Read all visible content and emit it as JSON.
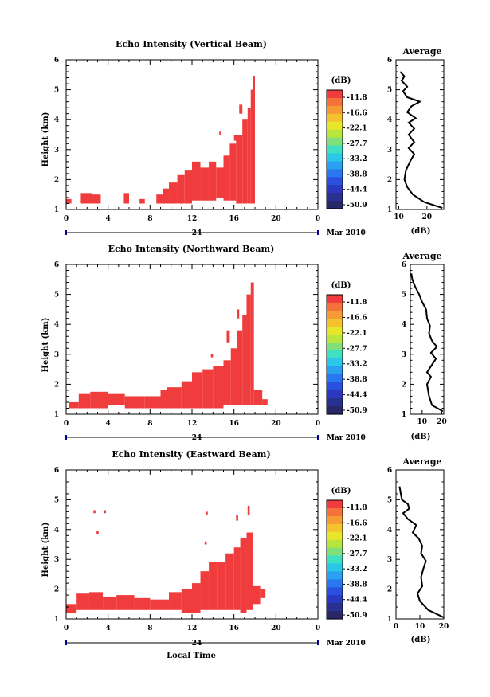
{
  "x_axis_label": "Local Time",
  "time_ticks": [
    "0",
    "4",
    "8",
    "12",
    "16",
    "20",
    "0"
  ],
  "date_day": "24",
  "date_month": "Mar 2010",
  "colorbar": {
    "unit": "(dB)",
    "labels": [
      "-11.8",
      "-16.6",
      "-22.1",
      "-27.7",
      "-33.2",
      "-38.8",
      "-44.4",
      "-50.9"
    ],
    "colors": [
      "#f03c3c",
      "#f5713a",
      "#f59a35",
      "#f5c22f",
      "#e8e62a",
      "#b8e63c",
      "#7fe07a",
      "#3fe0c0",
      "#2ac8e8",
      "#2aa0f0",
      "#2a78f0",
      "#2a50e0",
      "#2a38c0",
      "#283090",
      "#282868"
    ]
  },
  "panels": [
    {
      "title": "Echo Intensity (Vertical Beam)",
      "avg_title": "Average",
      "avg_xticks": [
        "10",
        "20"
      ],
      "avg_xlabel": "(dB)"
    },
    {
      "title": "Echo Intensity (Northward Beam)",
      "avg_title": "Average",
      "avg_xticks": [
        "10",
        "20"
      ],
      "avg_xlabel": "(dB)"
    },
    {
      "title": "Echo Intensity (Eastward Beam)",
      "avg_title": "Average",
      "avg_xticks": [
        "0",
        "10",
        "20"
      ],
      "avg_xlabel": "(dB)"
    }
  ],
  "chart_data": [
    {
      "type": "heatmap",
      "title": "Echo Intensity (Vertical Beam)",
      "xlabel": "",
      "ylabel": "Height (km)",
      "xlim": [
        0,
        24
      ],
      "ylim": [
        1,
        6
      ],
      "color": "#f03c3c",
      "cells_hours_km": [
        [
          0.0,
          0.5,
          1.2,
          1.35
        ],
        [
          1.4,
          2.5,
          1.2,
          1.55
        ],
        [
          2.5,
          3.3,
          1.2,
          1.5
        ],
        [
          5.5,
          6.0,
          1.2,
          1.55
        ],
        [
          7.0,
          7.5,
          1.2,
          1.35
        ],
        [
          8.6,
          9.2,
          1.2,
          1.5
        ],
        [
          9.2,
          9.8,
          1.2,
          1.7
        ],
        [
          9.8,
          10.6,
          1.2,
          1.9
        ],
        [
          10.6,
          11.3,
          1.2,
          2.15
        ],
        [
          11.3,
          12.0,
          1.2,
          2.3
        ],
        [
          12.0,
          12.8,
          1.3,
          2.6
        ],
        [
          12.8,
          13.6,
          1.3,
          2.4
        ],
        [
          13.6,
          14.3,
          1.3,
          2.6
        ],
        [
          14.3,
          15.0,
          1.4,
          2.4
        ],
        [
          15.0,
          15.6,
          1.3,
          2.8
        ],
        [
          15.6,
          16.2,
          1.3,
          3.2
        ],
        [
          16.2,
          16.8,
          1.2,
          3.5
        ],
        [
          16.8,
          17.3,
          1.2,
          4.0
        ],
        [
          17.3,
          17.6,
          1.2,
          4.4
        ],
        [
          17.6,
          17.8,
          1.2,
          5.0
        ],
        [
          17.8,
          18.0,
          1.2,
          5.45
        ],
        [
          16.0,
          16.3,
          3.3,
          3.5
        ],
        [
          16.5,
          16.8,
          4.2,
          4.5
        ],
        [
          14.6,
          14.8,
          3.5,
          3.6
        ]
      ]
    },
    {
      "type": "heatmap",
      "title": "Echo Intensity (Northward Beam)",
      "xlabel": "",
      "ylabel": "Height (km)",
      "xlim": [
        0,
        24
      ],
      "ylim": [
        1,
        6
      ],
      "color": "#f03c3c",
      "cells_hours_km": [
        [
          0.3,
          1.2,
          1.2,
          1.4
        ],
        [
          1.2,
          2.3,
          1.2,
          1.7
        ],
        [
          2.3,
          4.0,
          1.2,
          1.75
        ],
        [
          4.0,
          5.6,
          1.3,
          1.7
        ],
        [
          5.6,
          7.5,
          1.2,
          1.6
        ],
        [
          7.5,
          9.0,
          1.2,
          1.6
        ],
        [
          9.0,
          9.6,
          1.2,
          1.8
        ],
        [
          9.6,
          11.0,
          1.2,
          1.9
        ],
        [
          11.0,
          12.0,
          1.2,
          2.1
        ],
        [
          12.0,
          13.0,
          1.2,
          2.4
        ],
        [
          13.0,
          14.0,
          1.2,
          2.5
        ],
        [
          14.0,
          15.0,
          1.2,
          2.6
        ],
        [
          15.0,
          15.7,
          1.3,
          2.8
        ],
        [
          15.7,
          16.3,
          1.3,
          3.2
        ],
        [
          16.3,
          16.8,
          1.3,
          3.8
        ],
        [
          16.8,
          17.2,
          1.3,
          4.3
        ],
        [
          17.2,
          17.6,
          1.3,
          5.0
        ],
        [
          17.6,
          17.9,
          1.3,
          5.4
        ],
        [
          17.9,
          18.7,
          1.3,
          1.8
        ],
        [
          18.7,
          19.2,
          1.3,
          1.5
        ],
        [
          13.8,
          14.0,
          2.9,
          3.0
        ],
        [
          15.3,
          15.6,
          3.4,
          3.8
        ],
        [
          16.3,
          16.5,
          4.2,
          4.5
        ]
      ]
    },
    {
      "type": "heatmap",
      "title": "Echo Intensity (Eastward Beam)",
      "xlabel": "Local Time",
      "ylabel": "Height (km)",
      "xlim": [
        0,
        24
      ],
      "ylim": [
        1,
        6
      ],
      "color": "#f03c3c",
      "cells_hours_km": [
        [
          0.0,
          1.0,
          1.2,
          1.5
        ],
        [
          1.0,
          2.2,
          1.3,
          1.85
        ],
        [
          2.2,
          3.5,
          1.3,
          1.9
        ],
        [
          3.5,
          4.8,
          1.3,
          1.75
        ],
        [
          4.8,
          6.5,
          1.3,
          1.8
        ],
        [
          6.5,
          8.0,
          1.3,
          1.7
        ],
        [
          8.0,
          9.8,
          1.3,
          1.65
        ],
        [
          9.8,
          11.0,
          1.3,
          1.9
        ],
        [
          11.0,
          12.0,
          1.2,
          2.0
        ],
        [
          12.0,
          12.8,
          1.2,
          2.2
        ],
        [
          12.8,
          13.6,
          1.3,
          2.6
        ],
        [
          13.6,
          14.4,
          1.3,
          2.9
        ],
        [
          14.4,
          15.2,
          1.3,
          2.9
        ],
        [
          15.2,
          16.0,
          1.3,
          3.2
        ],
        [
          16.0,
          16.6,
          1.3,
          3.4
        ],
        [
          16.6,
          17.2,
          1.2,
          3.7
        ],
        [
          17.2,
          17.8,
          1.3,
          3.9
        ],
        [
          17.8,
          18.5,
          1.5,
          2.1
        ],
        [
          18.5,
          19.0,
          1.7,
          2.0
        ],
        [
          2.6,
          2.8,
          4.55,
          4.65
        ],
        [
          3.6,
          3.8,
          4.55,
          4.65
        ],
        [
          2.9,
          3.1,
          3.85,
          3.95
        ],
        [
          13.3,
          13.5,
          4.5,
          4.6
        ],
        [
          13.2,
          13.4,
          3.5,
          3.6
        ],
        [
          16.2,
          16.4,
          4.3,
          4.5
        ],
        [
          17.3,
          17.5,
          4.5,
          4.8
        ]
      ]
    }
  ],
  "averages": [
    {
      "xlim": [
        9,
        26
      ],
      "profile_db_km": [
        [
          25.5,
          1.05
        ],
        [
          19,
          1.25
        ],
        [
          15,
          1.5
        ],
        [
          13,
          1.75
        ],
        [
          12,
          2.0
        ],
        [
          12.5,
          2.3
        ],
        [
          14,
          2.6
        ],
        [
          15.5,
          2.85
        ],
        [
          13.5,
          3.05
        ],
        [
          15.5,
          3.25
        ],
        [
          13.5,
          3.5
        ],
        [
          15.5,
          3.7
        ],
        [
          13.5,
          3.9
        ],
        [
          16,
          4.05
        ],
        [
          13,
          4.25
        ],
        [
          14.5,
          4.45
        ],
        [
          17.5,
          4.6
        ],
        [
          13,
          4.75
        ],
        [
          11.5,
          4.95
        ],
        [
          13,
          5.1
        ],
        [
          11,
          5.3
        ],
        [
          12,
          5.45
        ],
        [
          10.5,
          5.6
        ]
      ]
    },
    {
      "xlim": [
        4,
        21
      ],
      "profile_db_km": [
        [
          20.5,
          1.1
        ],
        [
          15,
          1.3
        ],
        [
          13.5,
          1.6
        ],
        [
          12.5,
          2.0
        ],
        [
          14.5,
          2.25
        ],
        [
          12.5,
          2.4
        ],
        [
          14.5,
          2.6
        ],
        [
          17,
          2.85
        ],
        [
          14.5,
          3.05
        ],
        [
          17.5,
          3.25
        ],
        [
          15,
          3.45
        ],
        [
          13.5,
          3.7
        ],
        [
          14,
          3.95
        ],
        [
          12.5,
          4.2
        ],
        [
          12,
          4.5
        ],
        [
          10,
          4.75
        ],
        [
          8.5,
          5.0
        ],
        [
          6.5,
          5.25
        ],
        [
          5,
          5.5
        ],
        [
          4.5,
          5.7
        ]
      ]
    },
    {
      "xlim": [
        0,
        20
      ],
      "profile_db_km": [
        [
          20,
          1.05
        ],
        [
          13.5,
          1.3
        ],
        [
          10,
          1.6
        ],
        [
          9,
          1.85
        ],
        [
          11,
          2.1
        ],
        [
          10.5,
          2.4
        ],
        [
          11.5,
          2.7
        ],
        [
          12.5,
          2.95
        ],
        [
          10.5,
          3.2
        ],
        [
          11,
          3.45
        ],
        [
          9.5,
          3.7
        ],
        [
          7,
          3.9
        ],
        [
          8.5,
          4.15
        ],
        [
          5,
          4.35
        ],
        [
          3,
          4.55
        ],
        [
          5.5,
          4.7
        ],
        [
          5,
          4.85
        ],
        [
          2.5,
          5.0
        ],
        [
          2,
          5.2
        ],
        [
          1.5,
          5.45
        ]
      ]
    }
  ]
}
